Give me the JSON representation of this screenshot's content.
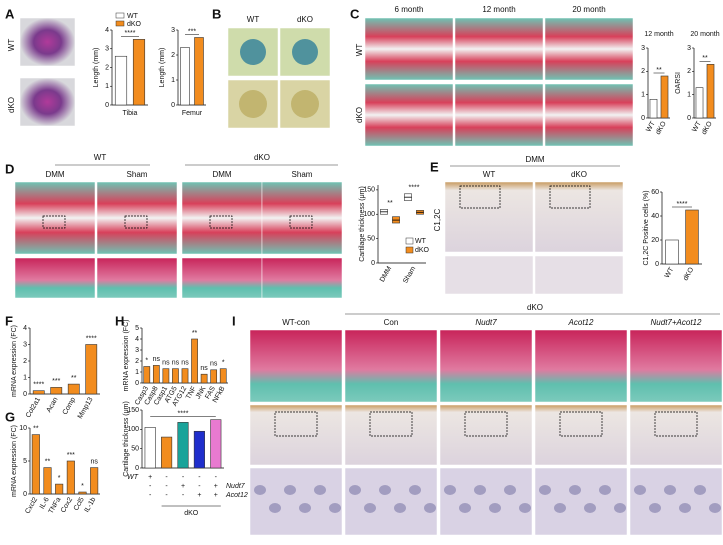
{
  "figure": {
    "panel_letters": [
      "A",
      "B",
      "C",
      "D",
      "E",
      "F",
      "G",
      "H",
      "I"
    ],
    "A_rows": [
      "WT",
      "dKO"
    ],
    "B_columns": [
      "WT",
      "dKO"
    ],
    "C_columns": [
      "6 month",
      "12 month",
      "20 month"
    ],
    "C_rows": [
      "WT",
      "dKO"
    ],
    "D_groups": [
      "WT",
      "dKO"
    ],
    "D_columns": [
      "DMM",
      "Sham",
      "DMM",
      "Sham"
    ],
    "E_header": "DMM",
    "E_columns": [
      "WT",
      "dKO"
    ],
    "E_row": "C1,2C",
    "I_group": "dKO",
    "I_columns": [
      "WT-con",
      "Con",
      "Nudt7",
      "Acot12",
      "Nudt7+Acot12"
    ]
  },
  "chart_data": [
    {
      "type": "bar",
      "ylabel": "Length (mm)",
      "xlabel": "Tibia",
      "values": [
        2.6,
        3.5
      ],
      "colors": [
        "#ffffff",
        "#f28c1e"
      ],
      "ylim": [
        0,
        4
      ],
      "yticks": [
        0,
        1,
        2,
        3,
        4
      ],
      "sig": [
        "****"
      ],
      "legend": [
        {
          "label": "WT",
          "color": "#ffffff"
        },
        {
          "label": "dKO",
          "color": "#f28c1e"
        }
      ]
    },
    {
      "type": "bar",
      "ylabel": "Length (mm)",
      "xlabel": "Femur",
      "values": [
        2.3,
        2.7
      ],
      "colors": [
        "#ffffff",
        "#f28c1e"
      ],
      "ylim": [
        0,
        3
      ],
      "yticks": [
        0,
        1,
        2,
        3
      ],
      "sig": [
        "***"
      ]
    },
    {
      "type": "bar",
      "title": "12 month",
      "categories": [
        "WT",
        "dKO"
      ],
      "values": [
        0.8,
        1.8
      ],
      "colors": [
        "#ffffff",
        "#f28c1e"
      ],
      "ylim": [
        0,
        3
      ],
      "yticks": [
        0,
        1,
        2,
        3
      ],
      "sig": [
        "**"
      ]
    },
    {
      "type": "bar",
      "title": "20 month",
      "ylabel": "OARSI",
      "categories": [
        "WT",
        "dKO"
      ],
      "values": [
        1.3,
        2.3
      ],
      "colors": [
        "#ffffff",
        "#f28c1e"
      ],
      "ylim": [
        0,
        3
      ],
      "yticks": [
        0,
        1,
        2,
        3
      ],
      "sig": [
        "**"
      ]
    },
    {
      "type": "box",
      "ylabel": "Cartilage thickness (μm)",
      "categories": [
        "DMM",
        "Sham"
      ],
      "series": [
        {
          "name": "WT",
          "color": "#ffffff",
          "q1": [
            100,
            128
          ],
          "median": [
            105,
            135
          ],
          "q3": [
            110,
            142
          ]
        },
        {
          "name": "dKO",
          "color": "#f28c1e",
          "q1": [
            82,
            100
          ],
          "median": [
            88,
            104
          ],
          "q3": [
            95,
            108
          ]
        }
      ],
      "ylim": [
        0,
        160
      ],
      "yticks": [
        0,
        50,
        100,
        150
      ],
      "sig": [
        "**",
        "****"
      ]
    },
    {
      "type": "bar",
      "ylabel": "C1,2C Positive cells (%)",
      "categories": [
        "WT",
        "dKO"
      ],
      "values": [
        20,
        45
      ],
      "colors": [
        "#ffffff",
        "#f28c1e"
      ],
      "ylim": [
        0,
        60
      ],
      "yticks": [
        0,
        20,
        40,
        60
      ],
      "sig": [
        "****"
      ]
    },
    {
      "type": "bar",
      "ylabel": "mRNA expression (FC)",
      "categories": [
        "Col2a1",
        "Acan",
        "Comp",
        "Mmp13"
      ],
      "values": [
        0.2,
        0.4,
        0.6,
        3.0
      ],
      "colors": [
        "#f28c1e",
        "#f28c1e",
        "#f28c1e",
        "#f28c1e"
      ],
      "ylim": [
        0,
        4
      ],
      "yticks": [
        0,
        1,
        2,
        3,
        4
      ],
      "sig": [
        "****",
        "***",
        "**",
        "****"
      ]
    },
    {
      "type": "bar",
      "ylabel": "mRNA expression (FC)",
      "categories": [
        "Cxcl2",
        "IL-6",
        "TNFa",
        "Cox2",
        "Ccl5",
        "IL-1b"
      ],
      "values": [
        9,
        4,
        1.5,
        5,
        0.3,
        4
      ],
      "colors": [
        "#f28c1e",
        "#f28c1e",
        "#f28c1e",
        "#f28c1e",
        "#f28c1e",
        "#f28c1e"
      ],
      "ylim": [
        0,
        10
      ],
      "yticks": [
        0,
        5,
        10
      ],
      "sig": [
        "**",
        "**",
        "*",
        "***",
        "*",
        "ns"
      ]
    },
    {
      "type": "bar",
      "ylabel": "mRNA expression (FC)",
      "categories": [
        "Casp3",
        "Casp8",
        "Casp1",
        "ATG5",
        "ATG12",
        "TNF",
        "JNK",
        "FAS",
        "NFkB"
      ],
      "values": [
        1.5,
        1.6,
        1.3,
        1.3,
        1.3,
        4,
        0.8,
        1.2,
        1.3
      ],
      "colors": [
        "#f28c1e",
        "#f28c1e",
        "#f28c1e",
        "#f28c1e",
        "#f28c1e",
        "#f28c1e",
        "#f28c1e",
        "#f28c1e",
        "#f28c1e"
      ],
      "ylim": [
        0,
        5
      ],
      "yticks": [
        0,
        1,
        2,
        3,
        4,
        5
      ],
      "sig": [
        "*",
        "ns",
        "ns",
        "ns",
        "ns",
        "**",
        "ns",
        "ns",
        "*"
      ]
    },
    {
      "type": "bar",
      "ylabel": "Cartilage thickness (μm)",
      "values": [
        105,
        80,
        118,
        95,
        125
      ],
      "colors": [
        "#ffffff",
        "#f28c1e",
        "#1aa39a",
        "#1f2ecc",
        "#e87ad0"
      ],
      "ylim": [
        0,
        150
      ],
      "yticks": [
        0,
        50,
        100,
        150
      ],
      "sig": [
        "****"
      ],
      "conditions": [
        {
          "label": "WT",
          "cells": [
            "+",
            "-",
            "-",
            "-",
            "-"
          ]
        },
        {
          "label": "Nudt7",
          "cells": [
            "-",
            "-",
            "+",
            "-",
            "+"
          ]
        },
        {
          "label": "Acot12",
          "cells": [
            "-",
            "-",
            "-",
            "+",
            "+"
          ]
        }
      ],
      "group": "dKO"
    }
  ]
}
